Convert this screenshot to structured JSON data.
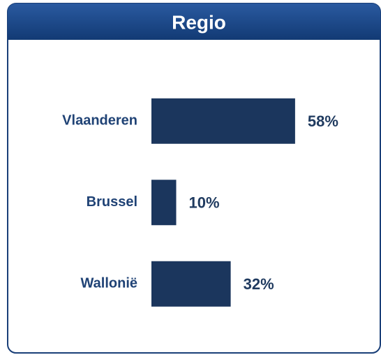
{
  "chart_data": {
    "type": "bar",
    "orientation": "horizontal",
    "title": "Regio",
    "categories": [
      "Vlaanderen",
      "Brussel",
      "Wallonië"
    ],
    "values": [
      58,
      10,
      32
    ],
    "value_labels": [
      "58%",
      "10%",
      "32%"
    ],
    "color": "#1b365d"
  }
}
